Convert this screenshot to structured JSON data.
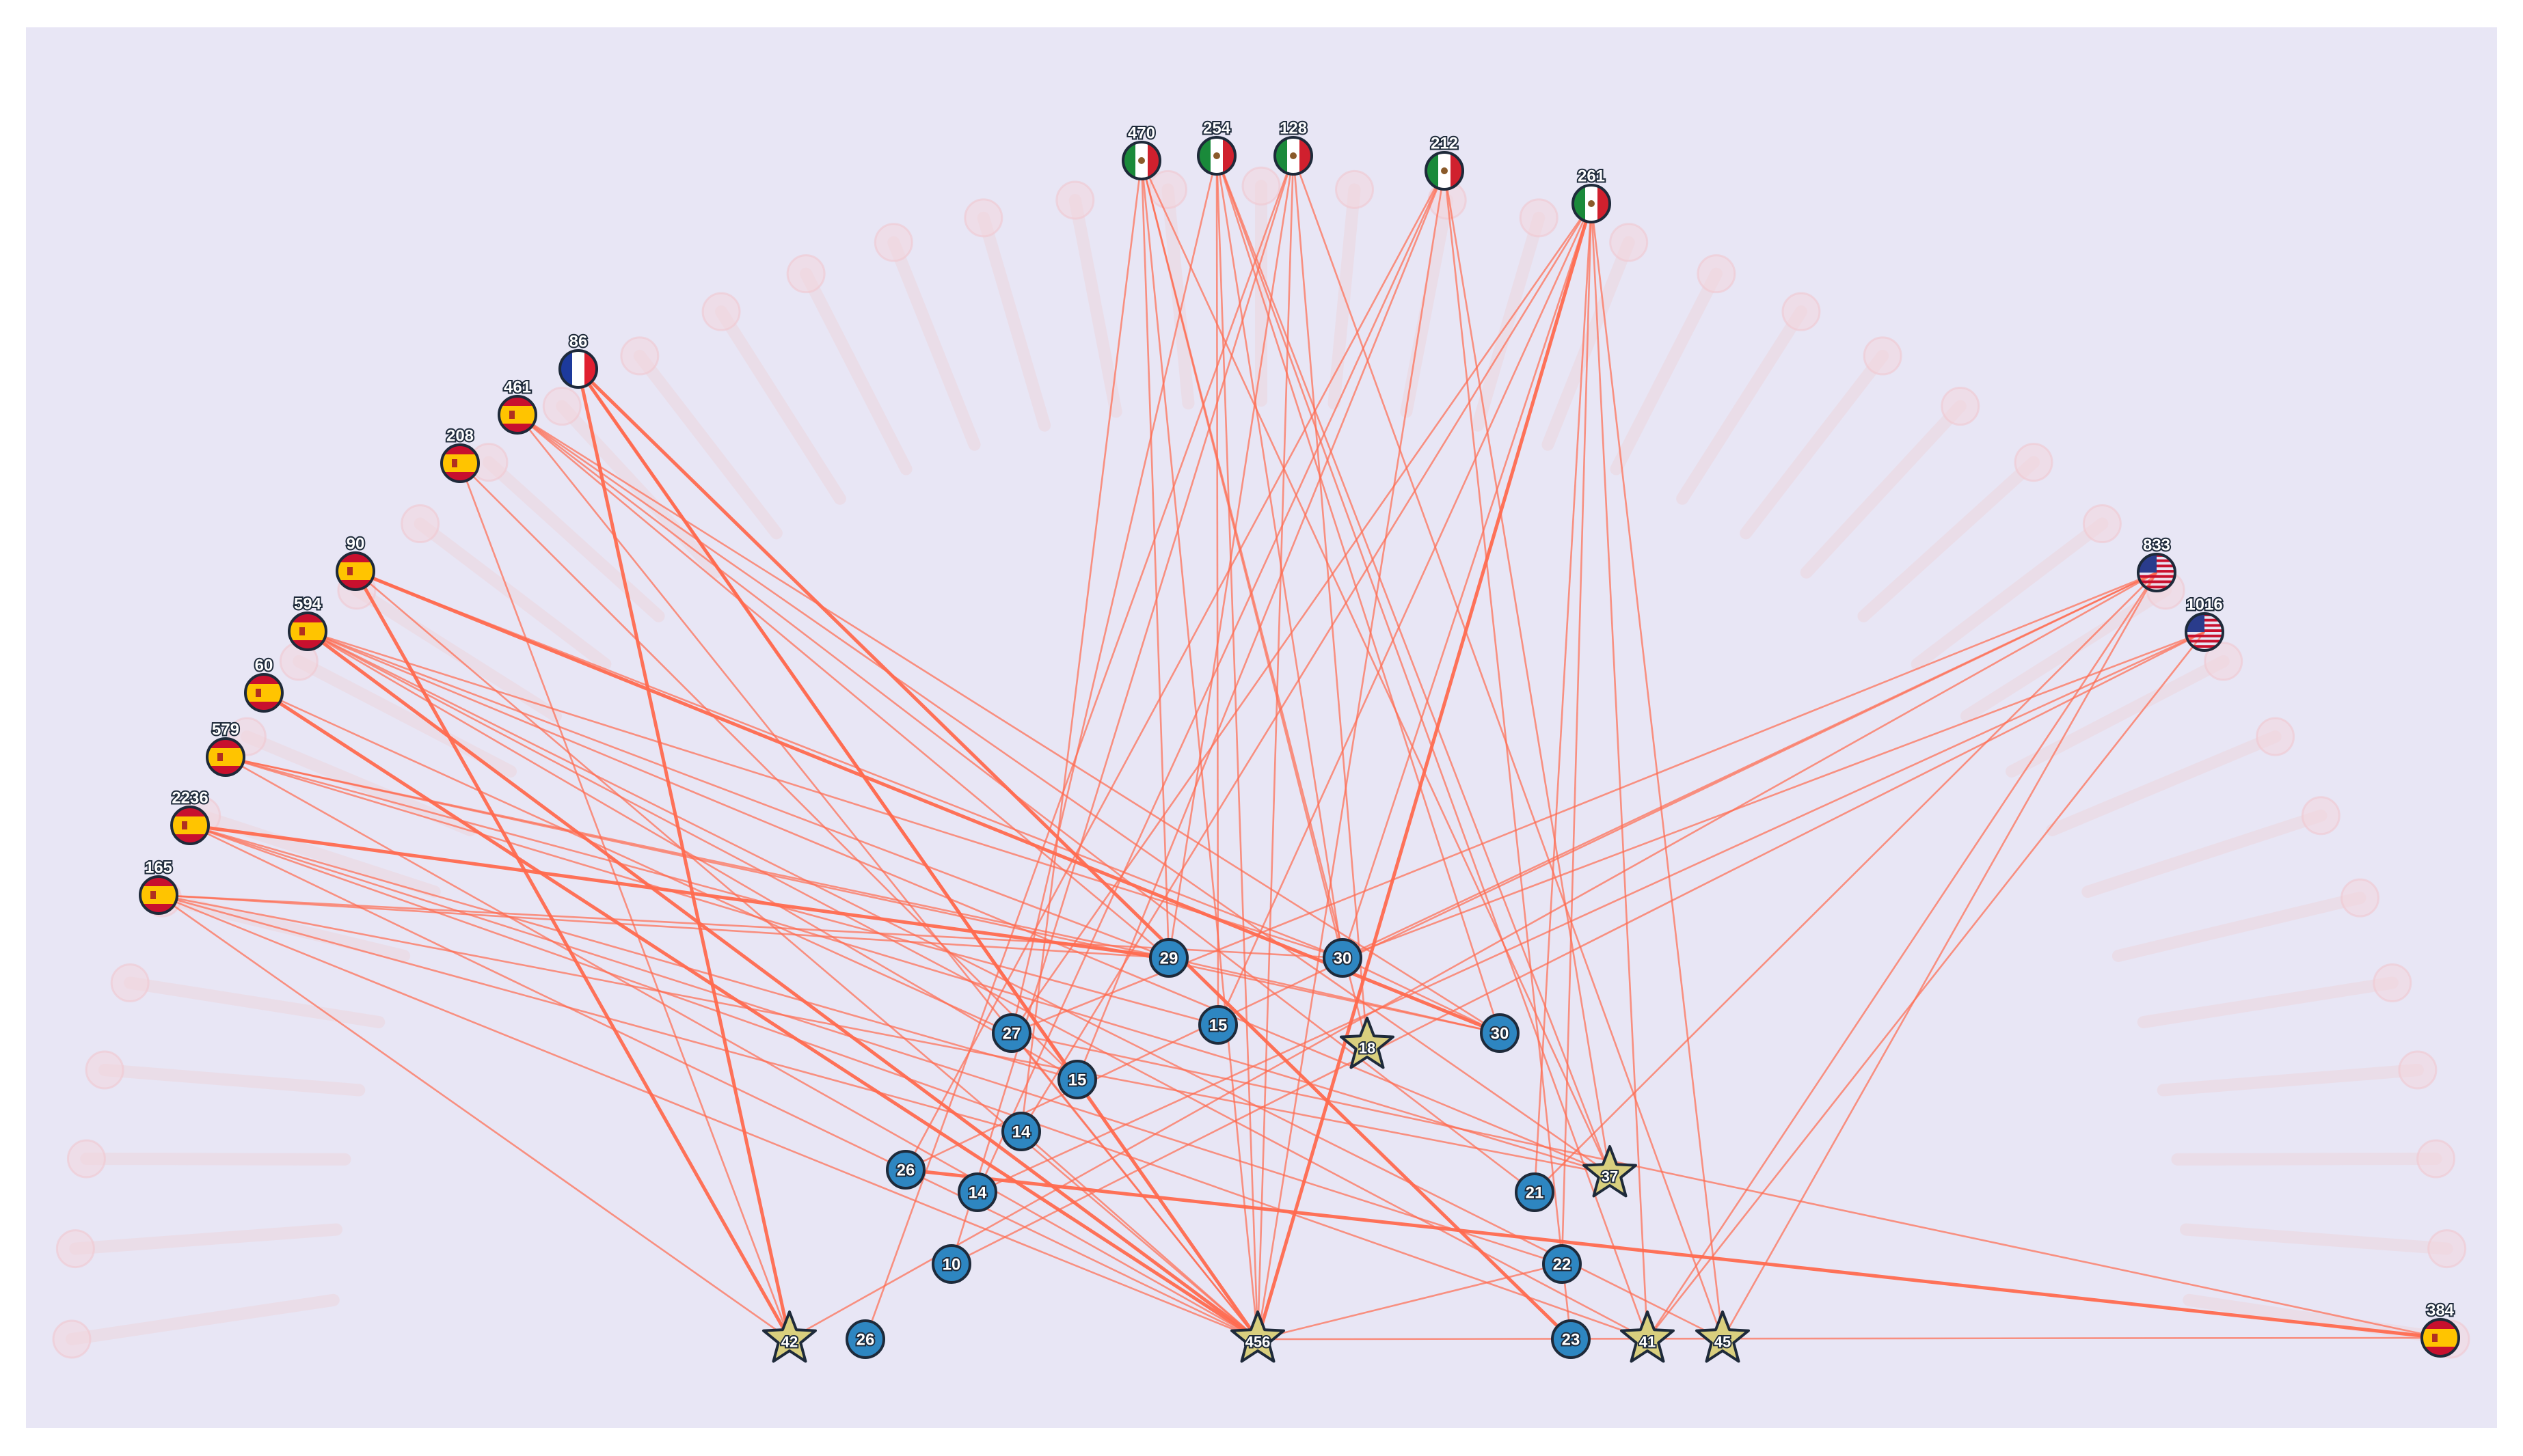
{
  "background_color": "#e8e6f5",
  "edge_color": "#ff6a4f",
  "circle_color": "#2e86c1",
  "star_color": "#d9cf7e",
  "country_nodes": [
    {
      "id": "c1",
      "label": "470",
      "country": "mexico"
    },
    {
      "id": "c2",
      "label": "254",
      "country": "mexico"
    },
    {
      "id": "c3",
      "label": "128",
      "country": "mexico"
    },
    {
      "id": "c4",
      "label": "212",
      "country": "mexico"
    },
    {
      "id": "c5",
      "label": "261",
      "country": "mexico"
    },
    {
      "id": "c6",
      "label": "86",
      "country": "france"
    },
    {
      "id": "c7",
      "label": "461",
      "country": "spain"
    },
    {
      "id": "c8",
      "label": "208",
      "country": "spain"
    },
    {
      "id": "c9",
      "label": "90",
      "country": "spain"
    },
    {
      "id": "c10",
      "label": "594",
      "country": "spain"
    },
    {
      "id": "c11",
      "label": "60",
      "country": "spain"
    },
    {
      "id": "c12",
      "label": "579",
      "country": "spain"
    },
    {
      "id": "c13",
      "label": "2236",
      "country": "spain"
    },
    {
      "id": "c14",
      "label": "165",
      "country": "spain"
    },
    {
      "id": "c15",
      "label": "833",
      "country": "usa"
    },
    {
      "id": "c16",
      "label": "1016",
      "country": "usa"
    },
    {
      "id": "c17",
      "label": "384",
      "country": "spain"
    }
  ],
  "circle_nodes": [
    {
      "id": "n1",
      "label": "29"
    },
    {
      "id": "n2",
      "label": "30"
    },
    {
      "id": "n3",
      "label": "30"
    },
    {
      "id": "n4",
      "label": "27"
    },
    {
      "id": "n5",
      "label": "15"
    },
    {
      "id": "n6",
      "label": "15"
    },
    {
      "id": "n7",
      "label": "14"
    },
    {
      "id": "n8",
      "label": "26"
    },
    {
      "id": "n9",
      "label": "14"
    },
    {
      "id": "n10",
      "label": "10"
    },
    {
      "id": "n11",
      "label": "26"
    },
    {
      "id": "n12",
      "label": "21"
    },
    {
      "id": "n13",
      "label": "22"
    },
    {
      "id": "n14",
      "label": "23"
    }
  ],
  "star_nodes": [
    {
      "id": "s1",
      "label": "18"
    },
    {
      "id": "s2",
      "label": "37"
    },
    {
      "id": "s3",
      "label": "42"
    },
    {
      "id": "s4",
      "label": "456"
    },
    {
      "id": "s5",
      "label": "41"
    },
    {
      "id": "s6",
      "label": "45"
    }
  ],
  "edges": [
    [
      "c1",
      "n1"
    ],
    [
      "c1",
      "s4"
    ],
    [
      "c1",
      "n2"
    ],
    [
      "c1",
      "s2"
    ],
    [
      "c1",
      "n7"
    ],
    [
      "c1",
      "s1"
    ],
    [
      "c2",
      "n2"
    ],
    [
      "c2",
      "s4"
    ],
    [
      "c2",
      "n6"
    ],
    [
      "c2",
      "s2"
    ],
    [
      "c2",
      "n3"
    ],
    [
      "c2",
      "n4"
    ],
    [
      "c2",
      "s5"
    ],
    [
      "c3",
      "n1"
    ],
    [
      "c3",
      "s4"
    ],
    [
      "c3",
      "n11"
    ],
    [
      "c3",
      "s1"
    ],
    [
      "c3",
      "s6"
    ],
    [
      "c3",
      "n10"
    ],
    [
      "c4",
      "n8"
    ],
    [
      "c4",
      "s4"
    ],
    [
      "c4",
      "n14"
    ],
    [
      "c4",
      "n9"
    ],
    [
      "c4",
      "n5"
    ],
    [
      "c4",
      "s2"
    ],
    [
      "c5",
      "s4"
    ],
    [
      "c5",
      "n2"
    ],
    [
      "c5",
      "n4"
    ],
    [
      "c5",
      "s5"
    ],
    [
      "c5",
      "s6"
    ],
    [
      "c5",
      "n6"
    ],
    [
      "c5",
      "n7"
    ],
    [
      "c5",
      "n13"
    ],
    [
      "c5",
      "n12"
    ],
    [
      "c6",
      "s3"
    ],
    [
      "c6",
      "s4"
    ],
    [
      "c6",
      "n5"
    ],
    [
      "c6",
      "n14"
    ],
    [
      "c7",
      "n3"
    ],
    [
      "c7",
      "s2"
    ],
    [
      "c7",
      "s4"
    ],
    [
      "c7",
      "n1"
    ],
    [
      "c7",
      "n12"
    ],
    [
      "c8",
      "s3"
    ],
    [
      "c8",
      "n5"
    ],
    [
      "c9",
      "n3"
    ],
    [
      "c9",
      "s3"
    ],
    [
      "c9",
      "s4"
    ],
    [
      "c9",
      "n2"
    ],
    [
      "c10",
      "s4"
    ],
    [
      "c10",
      "n2"
    ],
    [
      "c10",
      "n1"
    ],
    [
      "c10",
      "s2"
    ],
    [
      "c10",
      "s5"
    ],
    [
      "c10",
      "n5"
    ],
    [
      "c10",
      "s6"
    ],
    [
      "c11",
      "s4"
    ],
    [
      "c11",
      "n4"
    ],
    [
      "c12",
      "n1"
    ],
    [
      "c12",
      "s2"
    ],
    [
      "c12",
      "s4"
    ],
    [
      "c12",
      "n3"
    ],
    [
      "c12",
      "n6"
    ],
    [
      "c13",
      "s4"
    ],
    [
      "c13",
      "n1"
    ],
    [
      "c13",
      "s5"
    ],
    [
      "c13",
      "n13"
    ],
    [
      "c13",
      "n5"
    ],
    [
      "c14",
      "s4"
    ],
    [
      "c14",
      "n1"
    ],
    [
      "c14",
      "s2"
    ],
    [
      "c14",
      "s3"
    ],
    [
      "c14",
      "n2"
    ],
    [
      "c14",
      "n7"
    ],
    [
      "c15",
      "s3"
    ],
    [
      "c15",
      "n4"
    ],
    [
      "c15",
      "s5"
    ],
    [
      "c15",
      "s6"
    ],
    [
      "c15",
      "n8"
    ],
    [
      "c15",
      "n2"
    ],
    [
      "c15",
      "n12"
    ],
    [
      "c16",
      "n2"
    ],
    [
      "c16",
      "s5"
    ],
    [
      "c16",
      "n9"
    ],
    [
      "c16",
      "n10"
    ],
    [
      "c17",
      "n8"
    ],
    [
      "c17",
      "s4"
    ],
    [
      "c17",
      "n4"
    ],
    [
      "n1",
      "n3"
    ],
    [
      "n2",
      "n3"
    ],
    [
      "n4",
      "s4"
    ],
    [
      "n7",
      "s4"
    ],
    [
      "n13",
      "s4"
    ]
  ],
  "heavy_edges": [
    [
      "c6",
      "s3"
    ],
    [
      "c6",
      "s4"
    ],
    [
      "c6",
      "n14"
    ],
    [
      "c9",
      "n3"
    ],
    [
      "c9",
      "s3"
    ],
    [
      "c10",
      "s4"
    ],
    [
      "c11",
      "s4"
    ],
    [
      "c13",
      "n1"
    ],
    [
      "c17",
      "n8"
    ],
    [
      "c5",
      "s4"
    ]
  ]
}
